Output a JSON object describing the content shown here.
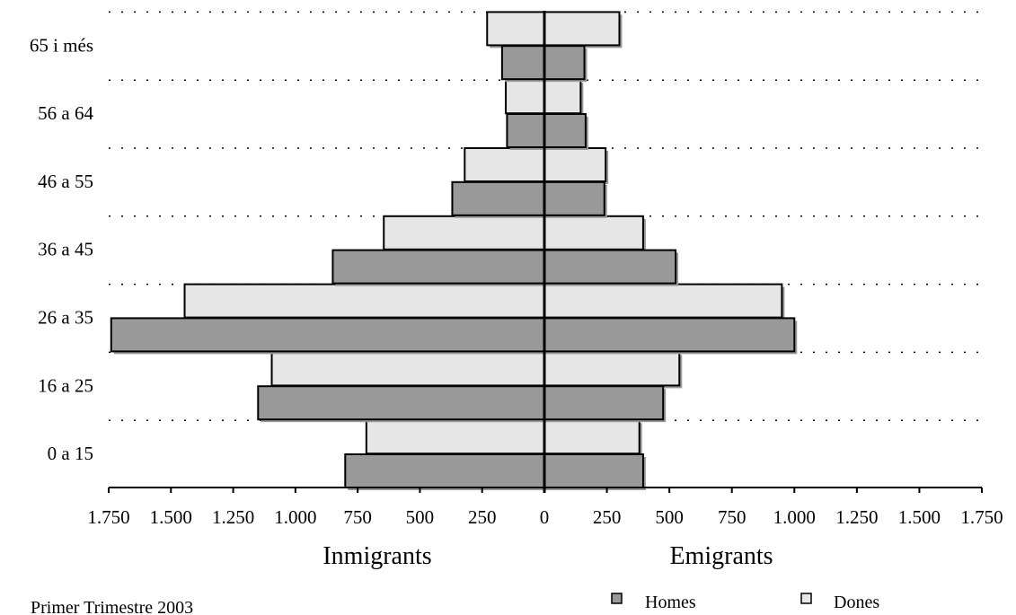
{
  "chart_data": {
    "type": "bar",
    "orientation": "horizontal",
    "layout": "population-pyramid",
    "categories": [
      "0 a 15",
      "16 a 25",
      "26 a 35",
      "36 a 45",
      "46 a 55",
      "56 a 64",
      "65 i més"
    ],
    "left_label": "Inmigrants",
    "right_label": "Emigrants",
    "tick_values": [
      1750,
      1500,
      1250,
      1000,
      750,
      500,
      250,
      0,
      250,
      500,
      750,
      1000,
      1250,
      1500,
      1750
    ],
    "tick_labels": [
      "1.750",
      "1.500",
      "1.250",
      "1.000",
      "750",
      "500",
      "250",
      "0",
      "250",
      "500",
      "750",
      "1.000",
      "1.250",
      "1.500",
      "1.750"
    ],
    "xlim": [
      0,
      1750
    ],
    "grid": "dotted horizontal between age groups",
    "legend_position": "bottom-right",
    "series": [
      {
        "name": "Homes",
        "color": "#999999",
        "inmigrants": [
          800,
          1150,
          1740,
          850,
          370,
          150,
          170
        ],
        "emigrants": [
          395,
          475,
          1000,
          525,
          240,
          165,
          160
        ]
      },
      {
        "name": "Dones",
        "color": "#e6e6e6",
        "inmigrants": [
          715,
          1095,
          1445,
          645,
          320,
          155,
          230
        ],
        "emigrants": [
          380,
          540,
          950,
          395,
          245,
          145,
          300
        ]
      }
    ]
  },
  "footer": {
    "note": "Primer Trimestre 2003"
  }
}
